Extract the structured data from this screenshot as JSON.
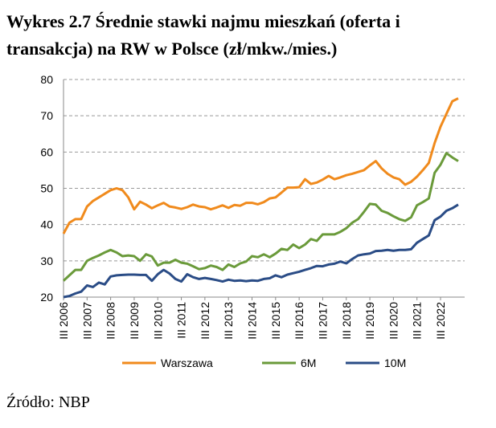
{
  "chart_data": {
    "type": "line",
    "title": [
      "Wykres 2.7 Średnie stawki najmu mieszkań (oferta i",
      "transakcja) na RW w Polsce (zł/mkw./mies.)"
    ],
    "source": "Źródło: NBP",
    "categories": [
      "III 2006",
      null,
      null,
      null,
      "III 2007",
      null,
      null,
      null,
      "III 2008",
      null,
      null,
      null,
      "III 2009",
      null,
      null,
      null,
      "III 2010",
      null,
      null,
      null,
      "III 2011",
      null,
      null,
      null,
      "III 2012",
      null,
      null,
      null,
      "III 2013",
      null,
      null,
      null,
      "III 2014",
      null,
      null,
      null,
      "III 2015",
      null,
      null,
      null,
      "III 2016",
      null,
      null,
      null,
      "III 2017",
      null,
      null,
      null,
      "III 2018",
      null,
      null,
      null,
      "III 2019",
      null,
      null,
      null,
      "III 2020",
      null,
      null,
      null,
      "III 2021",
      null,
      null,
      null,
      "III 2022",
      null,
      null,
      null
    ],
    "series": [
      {
        "name": "Warszawa",
        "color": "#f08a1c",
        "values": [
          37.5,
          40.5,
          41.5,
          41.5,
          45,
          46.5,
          47.5,
          48.5,
          49.5,
          50,
          49.5,
          47.5,
          44.2,
          46.3,
          45.5,
          44.5,
          45.3,
          46,
          45,
          44.7,
          44.3,
          44.8,
          45.5,
          45,
          44.8,
          44.2,
          44.7,
          45.3,
          44.6,
          45.4,
          45.2,
          46,
          46,
          45.6,
          46.2,
          47.2,
          47.5,
          48.8,
          50.2,
          50.2,
          50.3,
          52.5,
          51.2,
          51.6,
          52.4,
          53.4,
          52.5,
          53,
          53.6,
          54,
          54.5,
          55,
          56.3,
          57.5,
          55.5,
          54,
          53,
          52.5,
          51,
          51.8,
          53.2,
          55,
          57,
          62.5,
          67,
          70.5,
          74,
          74.8
        ]
      },
      {
        "name": "6M",
        "color": "#6a9a3a",
        "values": [
          24.5,
          26,
          27.5,
          27.5,
          30,
          30.8,
          31.5,
          32.3,
          33,
          32.3,
          31.3,
          31.5,
          31.3,
          30,
          31.8,
          31.2,
          28.7,
          29.5,
          29.5,
          30.3,
          29.5,
          29.2,
          28.5,
          27.7,
          28,
          28.7,
          28.3,
          27.5,
          29,
          28.3,
          29.3,
          29.8,
          31.3,
          31,
          31.8,
          31,
          32,
          33.3,
          33,
          34.5,
          33.5,
          34.5,
          36,
          35.5,
          37.3,
          37.3,
          37.3,
          38,
          39,
          40.5,
          41.5,
          43.5,
          45.7,
          45.5,
          43.8,
          43.2,
          42.3,
          41.5,
          41,
          42,
          45.3,
          46.2,
          47.2,
          54.3,
          56.5,
          59.7,
          58.5,
          57.5
        ]
      },
      {
        "name": "10M",
        "color": "#2a4c86",
        "values": [
          20,
          20.3,
          21,
          21.5,
          23.2,
          22.8,
          24,
          23.5,
          25.7,
          26,
          26.1,
          26.2,
          26.2,
          26.1,
          26.1,
          24.5,
          26.3,
          27.5,
          26.5,
          25,
          24.3,
          26.3,
          25.5,
          25,
          25.3,
          25,
          24.7,
          24.3,
          24.8,
          24.5,
          24.6,
          24.4,
          24.6,
          24.5,
          25,
          25.2,
          26,
          25.5,
          26.2,
          26.6,
          27,
          27.5,
          28,
          28.6,
          28.5,
          29,
          29.2,
          29.8,
          29.3,
          30.5,
          31.5,
          31.8,
          32,
          32.7,
          32.8,
          33,
          32.8,
          33,
          33,
          33.2,
          35,
          36,
          37,
          41.2,
          42.2,
          43.8,
          44.5,
          45.5
        ]
      }
    ],
    "ylim": [
      20,
      80
    ],
    "yticks": [
      20,
      30,
      40,
      50,
      60,
      70,
      80
    ],
    "grid": true,
    "legend": "bottom"
  }
}
